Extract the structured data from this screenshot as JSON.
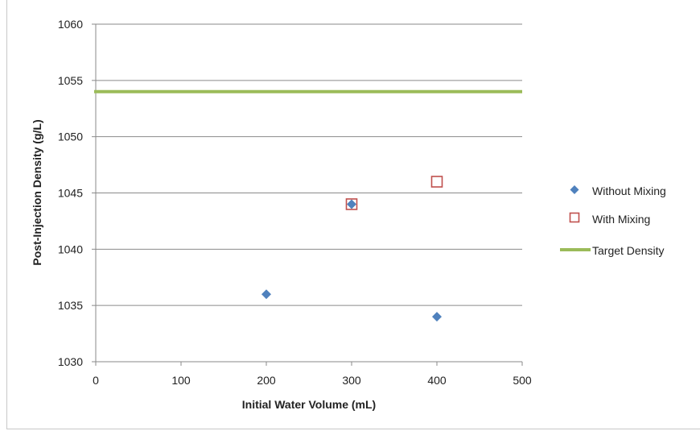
{
  "chart_data": {
    "type": "scatter",
    "title": "",
    "xlabel": "Initial Water Volume (mL)",
    "ylabel": "Post-Injection Density (g/L)",
    "xlim": [
      0,
      500
    ],
    "ylim": [
      1030,
      1060
    ],
    "x_ticks": [
      0,
      100,
      200,
      300,
      400,
      500
    ],
    "y_ticks": [
      1030,
      1035,
      1040,
      1045,
      1050,
      1055,
      1060
    ],
    "grid": "horizontal",
    "legend_position": "right",
    "series": [
      {
        "name": "Without Mixing",
        "marker": "diamond",
        "color": "#4f81bd",
        "points": [
          [
            200,
            1036
          ],
          [
            300,
            1044
          ],
          [
            400,
            1034
          ]
        ]
      },
      {
        "name": "With Mixing",
        "marker": "open-square",
        "color": "#c0504d",
        "points": [
          [
            300,
            1044
          ],
          [
            400,
            1046
          ]
        ]
      },
      {
        "name": "Target Density",
        "marker": "line",
        "color": "#9bbb59",
        "y": 1054
      }
    ]
  }
}
